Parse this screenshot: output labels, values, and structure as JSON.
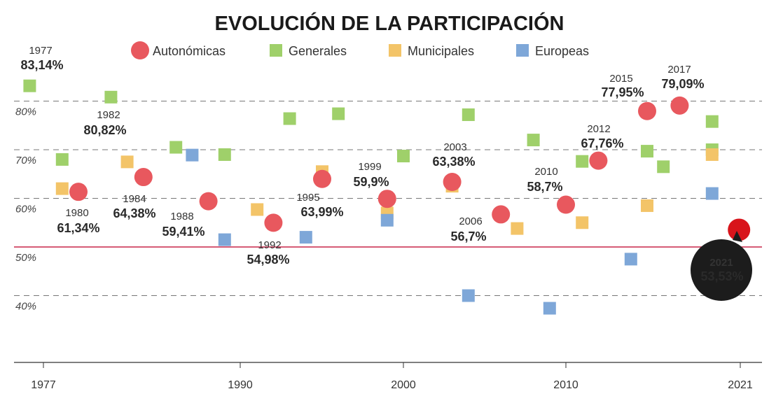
{
  "chart_data": {
    "type": "scatter",
    "title": "EVOLUCIÓN DE LA PARTICIPACIÓN",
    "xlabel": "",
    "ylabel": "",
    "xlim": [
      1977,
      2021
    ],
    "ylim": [
      30,
      85
    ],
    "x_ticks": [
      "1977",
      "1990",
      "2000",
      "2010",
      "2021"
    ],
    "y_ticks": [
      "80%",
      "70%",
      "60%",
      "50%",
      "40%"
    ],
    "grid": "dashed horizontal at 40, 60, 70, 80; solid reference line at 50",
    "legend": {
      "placement": "top",
      "entries": [
        "Autonómicas",
        "Generales",
        "Municipales",
        "Europeas"
      ]
    },
    "colors": {
      "Autonómicas": "#e8585e",
      "Generales": "#9fd06a",
      "Municipales": "#f3c468",
      "Europeas": "#7ea7d8",
      "highlight": "#d8141b",
      "reference": "#c8264a"
    },
    "series": [
      {
        "name": "Autonómicas",
        "marker": "circle",
        "points": [
          {
            "x": 1980,
            "y": 61.34
          },
          {
            "x": 1984,
            "y": 64.38
          },
          {
            "x": 1988,
            "y": 59.41
          },
          {
            "x": 1992,
            "y": 54.98
          },
          {
            "x": 1995,
            "y": 63.99
          },
          {
            "x": 1999,
            "y": 59.9
          },
          {
            "x": 2003,
            "y": 63.38
          },
          {
            "x": 2006,
            "y": 56.7
          },
          {
            "x": 2010,
            "y": 58.7
          },
          {
            "x": 2012,
            "y": 67.76
          },
          {
            "x": 2015,
            "y": 77.95
          },
          {
            "x": 2017,
            "y": 79.09
          },
          {
            "x": 2021,
            "y": 53.53
          }
        ]
      },
      {
        "name": "Generales",
        "marker": "square",
        "points": [
          {
            "x": 1977,
            "y": 83.14
          },
          {
            "x": 1979,
            "y": 68
          },
          {
            "x": 1982,
            "y": 80.82
          },
          {
            "x": 1986,
            "y": 70.5
          },
          {
            "x": 1989,
            "y": 69
          },
          {
            "x": 1993,
            "y": 76.4
          },
          {
            "x": 1996,
            "y": 77.4
          },
          {
            "x": 2000,
            "y": 68.7
          },
          {
            "x": 2004,
            "y": 77.2
          },
          {
            "x": 2008,
            "y": 72
          },
          {
            "x": 2011,
            "y": 67.6
          },
          {
            "x": 2015,
            "y": 69.7
          },
          {
            "x": 2016,
            "y": 66.5
          },
          {
            "x": 2019,
            "y": 75.8
          },
          {
            "x": 2019,
            "y": 70
          }
        ]
      },
      {
        "name": "Municipales",
        "marker": "square",
        "points": [
          {
            "x": 1979,
            "y": 62
          },
          {
            "x": 1983,
            "y": 67.5
          },
          {
            "x": 1991,
            "y": 57.7
          },
          {
            "x": 1995,
            "y": 65.5
          },
          {
            "x": 1999,
            "y": 57
          },
          {
            "x": 2003,
            "y": 62.5
          },
          {
            "x": 2007,
            "y": 53.8
          },
          {
            "x": 2011,
            "y": 55
          },
          {
            "x": 2015,
            "y": 58.5
          },
          {
            "x": 2019,
            "y": 69
          }
        ]
      },
      {
        "name": "Europeas",
        "marker": "square",
        "points": [
          {
            "x": 1987,
            "y": 68.9
          },
          {
            "x": 1989,
            "y": 51.5
          },
          {
            "x": 1994,
            "y": 52
          },
          {
            "x": 1999,
            "y": 55.5
          },
          {
            "x": 2004,
            "y": 40
          },
          {
            "x": 2009,
            "y": 37.4
          },
          {
            "x": 2014,
            "y": 47.5
          },
          {
            "x": 2019,
            "y": 61
          }
        ]
      }
    ],
    "annotations": [
      {
        "year": "1977",
        "value": "83,14%"
      },
      {
        "year": "1980",
        "value": "61,34%"
      },
      {
        "year": "1982",
        "value": "80,82%"
      },
      {
        "year": "1984",
        "value": "64,38%"
      },
      {
        "year": "1988",
        "value": "59,41%"
      },
      {
        "year": "1992",
        "value": "54,98%"
      },
      {
        "year": "1995",
        "value": "63,99%"
      },
      {
        "year": "1999",
        "value": "59,9%"
      },
      {
        "year": "2003",
        "value": "63,38%"
      },
      {
        "year": "2006",
        "value": "56,7%"
      },
      {
        "year": "2010",
        "value": "58,7%"
      },
      {
        "year": "2012",
        "value": "67,76%"
      },
      {
        "year": "2015",
        "value": "77,95%"
      },
      {
        "year": "2017",
        "value": "79,09%"
      },
      {
        "year": "2021",
        "value": "53,53%"
      }
    ]
  }
}
